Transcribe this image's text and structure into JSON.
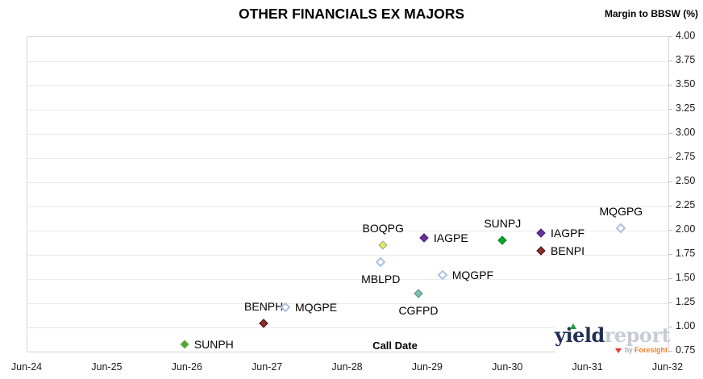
{
  "title": "OTHER FINANCIALS EX MAJORS",
  "logo": {
    "yield": "yield",
    "report": "report",
    "by": "by",
    "foresight": "Foresight",
    "up_triangle_color": "#1f9d3c",
    "down_triangle_color": "#e6372e",
    "yield_color": "#203055",
    "report_color": "#c7ccd4",
    "foresight_color": "#f07e26"
  },
  "colors": {
    "plot_border": "#d6d6d6",
    "gridline": "#e9e9e9",
    "tick": "#bfbfbf",
    "tick_label": "#1a1a1a",
    "text": "#000000"
  },
  "chart_data": {
    "type": "scatter",
    "title": "OTHER FINANCIALS EX MAJORS",
    "xlabel": "Call Date",
    "ylabel": "Margin to BBSW (%)",
    "ylim": [
      0.75,
      4.0
    ],
    "xlim_years_after_jun24": [
      0,
      8
    ],
    "grid": "horizontal-only",
    "y_axis_side": "right",
    "y_ticks": [
      "4.00",
      "3.75",
      "3.50",
      "3.25",
      "3.00",
      "2.75",
      "2.50",
      "2.25",
      "2.00",
      "1.75",
      "1.50",
      "1.25",
      "1.00",
      "0.75"
    ],
    "x_ticks": [
      "Jun-24",
      "Jun-25",
      "Jun-26",
      "Jun-27",
      "Jun-28",
      "Jun-29",
      "Jun-30",
      "Jun-31",
      "Jun-32"
    ],
    "marker_styles": {
      "sunph": {
        "fill": "#56a036",
        "stroke": "#7fc35f",
        "shape": "diamond-filled"
      },
      "sunpj": {
        "fill": "#0ca62e",
        "stroke": "#0a7a20",
        "shape": "diamond-filled"
      },
      "ben": {
        "fill": "#8e2d2b",
        "stroke": "#421311",
        "shape": "diamond-filled"
      },
      "iag": {
        "fill": "#6a2f9e",
        "stroke": "#451c6b",
        "shape": "diamond-filled"
      },
      "boqpg": {
        "fill": "#e2eb4e",
        "stroke": "#9c9cc8",
        "shape": "diamond-filled"
      },
      "cgfpd": {
        "fill": "#7ebe97",
        "stroke": "#5e88b8",
        "shape": "diamond-filled"
      },
      "mqg": {
        "fill": "#ffffff",
        "stroke": "#abc0e6",
        "shape": "diamond-hollow"
      }
    },
    "points": [
      {
        "label": "SUNPH",
        "call_date_approx": "May-26",
        "x_years_after_jun24": 1.97,
        "margin_pct": 0.82,
        "style": "sunph",
        "label_pos": "right"
      },
      {
        "label": "BENPH",
        "call_date_approx": "May-27",
        "x_years_after_jun24": 2.96,
        "margin_pct": 1.03,
        "style": "ben",
        "label_pos": "above"
      },
      {
        "label": "MQGPE",
        "call_date_approx": "Sep-27",
        "x_years_after_jun24": 3.23,
        "margin_pct": 1.2,
        "style": "mqg",
        "label_pos": "right"
      },
      {
        "label": "BOQPG",
        "call_date_approx": "Nov-28",
        "x_years_after_jun24": 4.45,
        "margin_pct": 1.84,
        "style": "boqpg",
        "label_pos": "above"
      },
      {
        "label": "MBLPD",
        "call_date_approx": "Nov-28",
        "x_years_after_jun24": 4.42,
        "margin_pct": 1.67,
        "style": "mqg",
        "label_pos": "below"
      },
      {
        "label": "CGFPD",
        "call_date_approx": "Apr-29",
        "x_years_after_jun24": 4.89,
        "margin_pct": 1.34,
        "style": "cgfpd",
        "label_pos": "below"
      },
      {
        "label": "IAGPE",
        "call_date_approx": "Jun-29",
        "x_years_after_jun24": 4.96,
        "margin_pct": 1.92,
        "style": "iag",
        "label_pos": "right"
      },
      {
        "label": "MQGPF",
        "call_date_approx": "Aug-29",
        "x_years_after_jun24": 5.19,
        "margin_pct": 1.53,
        "style": "mqg",
        "label_pos": "right"
      },
      {
        "label": "SUNPJ",
        "call_date_approx": "May-30",
        "x_years_after_jun24": 5.94,
        "margin_pct": 1.89,
        "style": "sunpj",
        "label_pos": "above"
      },
      {
        "label": "IAGPF",
        "call_date_approx": "Nov-30",
        "x_years_after_jun24": 6.42,
        "margin_pct": 1.97,
        "style": "iag",
        "label_pos": "right"
      },
      {
        "label": "BENPI",
        "call_date_approx": "Nov-30",
        "x_years_after_jun24": 6.42,
        "margin_pct": 1.78,
        "style": "ben",
        "label_pos": "right"
      },
      {
        "label": "MQGPG",
        "call_date_approx": "Nov-31",
        "x_years_after_jun24": 7.42,
        "margin_pct": 2.02,
        "style": "mqg",
        "label_pos": "above"
      }
    ]
  }
}
